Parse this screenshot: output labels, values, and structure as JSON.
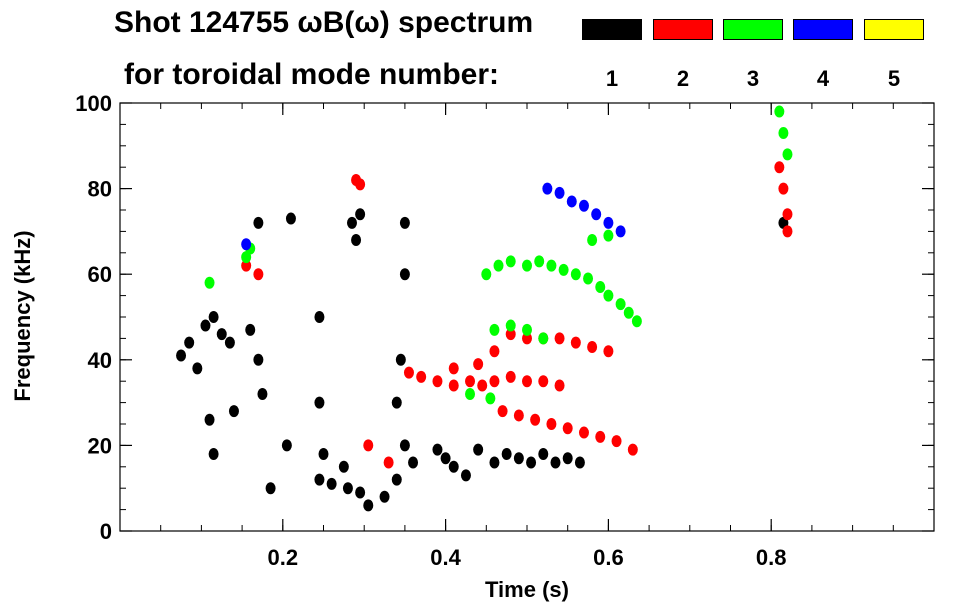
{
  "title_line1": "Shot 124755 ωB(ω) spectrum",
  "title_line2": "for toroidal mode number:",
  "legend": [
    {
      "label": "1",
      "color": "#000000"
    },
    {
      "label": "2",
      "color": "#ff0000"
    },
    {
      "label": "3",
      "color": "#00ff00"
    },
    {
      "label": "4",
      "color": "#0000ff"
    },
    {
      "label": "5",
      "color": "#ffff00"
    }
  ],
  "chart_data": {
    "type": "heatmap",
    "title": "Shot 124755 ωB(ω) spectrum",
    "xlabel": "Time (s)",
    "ylabel": "Frequency (kHz)",
    "xlim": [
      0.0,
      1.0
    ],
    "ylim": [
      0,
      100
    ],
    "x_ticks": [
      {
        "value": 0.2,
        "label": "0.2"
      },
      {
        "value": 0.4,
        "label": "0.4"
      },
      {
        "value": 0.6,
        "label": "0.6"
      },
      {
        "value": 0.8,
        "label": "0.8"
      }
    ],
    "y_ticks": [
      {
        "value": 0,
        "label": "0"
      },
      {
        "value": 20,
        "label": "20"
      },
      {
        "value": 40,
        "label": "40"
      },
      {
        "value": 60,
        "label": "60"
      },
      {
        "value": 80,
        "label": "80"
      },
      {
        "value": 100,
        "label": "100"
      }
    ],
    "x_minor_step": 0.05,
    "y_minor_step": 5,
    "series": [
      {
        "name": "1",
        "color": "#000000",
        "points": [
          [
            0.075,
            41
          ],
          [
            0.085,
            44
          ],
          [
            0.095,
            38
          ],
          [
            0.105,
            48
          ],
          [
            0.115,
            50
          ],
          [
            0.125,
            46
          ],
          [
            0.135,
            44
          ],
          [
            0.11,
            26
          ],
          [
            0.115,
            18
          ],
          [
            0.16,
            47
          ],
          [
            0.17,
            40
          ],
          [
            0.175,
            32
          ],
          [
            0.17,
            72
          ],
          [
            0.21,
            73
          ],
          [
            0.185,
            10
          ],
          [
            0.245,
            12
          ],
          [
            0.26,
            11
          ],
          [
            0.28,
            10
          ],
          [
            0.295,
            9
          ],
          [
            0.25,
            18
          ],
          [
            0.275,
            15
          ],
          [
            0.305,
            6
          ],
          [
            0.325,
            8
          ],
          [
            0.34,
            12
          ],
          [
            0.35,
            20
          ],
          [
            0.36,
            16
          ],
          [
            0.39,
            19
          ],
          [
            0.4,
            17
          ],
          [
            0.41,
            15
          ],
          [
            0.425,
            13
          ],
          [
            0.44,
            19
          ],
          [
            0.46,
            16
          ],
          [
            0.475,
            18
          ],
          [
            0.49,
            17
          ],
          [
            0.505,
            16
          ],
          [
            0.52,
            18
          ],
          [
            0.535,
            16
          ],
          [
            0.55,
            17
          ],
          [
            0.565,
            16
          ],
          [
            0.285,
            72
          ],
          [
            0.29,
            68
          ],
          [
            0.295,
            74
          ],
          [
            0.35,
            60
          ],
          [
            0.35,
            72
          ],
          [
            0.345,
            40
          ],
          [
            0.34,
            30
          ],
          [
            0.245,
            50
          ],
          [
            0.245,
            30
          ],
          [
            0.205,
            20
          ],
          [
            0.14,
            28
          ],
          [
            0.815,
            72
          ]
        ]
      },
      {
        "name": "2",
        "color": "#ff0000",
        "points": [
          [
            0.155,
            62
          ],
          [
            0.17,
            60
          ],
          [
            0.29,
            82
          ],
          [
            0.295,
            81
          ],
          [
            0.305,
            20
          ],
          [
            0.33,
            16
          ],
          [
            0.355,
            37
          ],
          [
            0.37,
            36
          ],
          [
            0.39,
            35
          ],
          [
            0.41,
            34
          ],
          [
            0.43,
            35
          ],
          [
            0.445,
            34
          ],
          [
            0.41,
            38
          ],
          [
            0.44,
            39
          ],
          [
            0.46,
            42
          ],
          [
            0.48,
            46
          ],
          [
            0.5,
            45
          ],
          [
            0.52,
            45
          ],
          [
            0.54,
            45
          ],
          [
            0.56,
            44
          ],
          [
            0.58,
            43
          ],
          [
            0.6,
            42
          ],
          [
            0.46,
            35
          ],
          [
            0.48,
            36
          ],
          [
            0.5,
            35
          ],
          [
            0.52,
            35
          ],
          [
            0.54,
            34
          ],
          [
            0.47,
            28
          ],
          [
            0.49,
            27
          ],
          [
            0.51,
            26
          ],
          [
            0.53,
            25
          ],
          [
            0.55,
            24
          ],
          [
            0.57,
            23
          ],
          [
            0.59,
            22
          ],
          [
            0.61,
            21
          ],
          [
            0.63,
            19
          ],
          [
            0.81,
            85
          ],
          [
            0.815,
            80
          ],
          [
            0.82,
            74
          ],
          [
            0.82,
            70
          ]
        ]
      },
      {
        "name": "3",
        "color": "#00ff00",
        "points": [
          [
            0.155,
            64
          ],
          [
            0.16,
            66
          ],
          [
            0.45,
            60
          ],
          [
            0.465,
            62
          ],
          [
            0.48,
            63
          ],
          [
            0.5,
            62
          ],
          [
            0.515,
            63
          ],
          [
            0.53,
            62
          ],
          [
            0.545,
            61
          ],
          [
            0.56,
            60
          ],
          [
            0.575,
            59
          ],
          [
            0.59,
            57
          ],
          [
            0.6,
            55
          ],
          [
            0.615,
            53
          ],
          [
            0.625,
            51
          ],
          [
            0.635,
            49
          ],
          [
            0.46,
            47
          ],
          [
            0.48,
            48
          ],
          [
            0.5,
            47
          ],
          [
            0.52,
            45
          ],
          [
            0.43,
            32
          ],
          [
            0.455,
            31
          ],
          [
            0.81,
            98
          ],
          [
            0.815,
            93
          ],
          [
            0.82,
            88
          ],
          [
            0.58,
            68
          ],
          [
            0.6,
            69
          ],
          [
            0.11,
            58
          ]
        ]
      },
      {
        "name": "4",
        "color": "#0000ff",
        "points": [
          [
            0.525,
            80
          ],
          [
            0.54,
            79
          ],
          [
            0.555,
            77
          ],
          [
            0.57,
            76
          ],
          [
            0.585,
            74
          ],
          [
            0.6,
            72
          ],
          [
            0.615,
            70
          ],
          [
            0.155,
            67
          ]
        ]
      },
      {
        "name": "5",
        "color": "#ffff00",
        "points": []
      }
    ]
  }
}
